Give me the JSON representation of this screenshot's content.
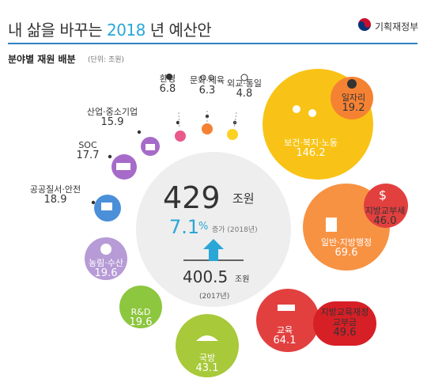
{
  "header": {
    "title_prefix": "내 삶을 바꾸는 ",
    "title_year": "2018",
    "title_suffix": " 년 예산안",
    "ministry": "기획재정부",
    "subtitle": "분야별 재원 배분",
    "unit": "(단위: 조원)"
  },
  "center": {
    "total": "429",
    "total_unit": "조원",
    "rate": "7.1",
    "rate_symbol": "%",
    "rate_text": "증가 (2018년)",
    "prev_total": "400.5",
    "prev_unit": "조원",
    "prev_year": "(2017년)"
  },
  "colors": {
    "accent": "#2aa7d6",
    "rule": "#2f7fc1",
    "yellow": "#f8c316",
    "pink": "#e8598c",
    "lavender": "#b79bd6",
    "purple": "#a66bc9",
    "blue": "#4a8fd8",
    "green": "#8dc63f",
    "orange": "#f79243",
    "orange_small": "#f58233",
    "red": "#e2403f",
    "red_small": "#d71f26",
    "yellow_dot": "#fbd224",
    "circle": "#eeeeee"
  },
  "chart_data": {
    "type": "bubble",
    "title": "분야별 재원 배분",
    "unit": "조원",
    "total": 429,
    "total_prev": 400.5,
    "growth_pct": 7.1,
    "categories": [
      {
        "name": "보건·복지·노동",
        "value": 146.2,
        "icon": "family-icon"
      },
      {
        "name": "일자리",
        "value": 19.2,
        "sub_of": "보건·복지·노동",
        "icon": "worker-icon"
      },
      {
        "name": "일반·지방행정",
        "value": 69.6,
        "icon": "building-icon"
      },
      {
        "name": "지방교부세",
        "value": 46.0,
        "sub_of": "일반·지방행정",
        "icon": "dollar-icon"
      },
      {
        "name": "교육",
        "value": 64.1,
        "icon": "book-icon"
      },
      {
        "name": "지방교육재정 교부금",
        "value": 49.6,
        "sub_of": "교육"
      },
      {
        "name": "국방",
        "value": 43.1,
        "icon": "helmet-icon"
      },
      {
        "name": "R&D",
        "value": 19.6
      },
      {
        "name": "농림·수산",
        "value": 19.6,
        "icon": "garlic-icon"
      },
      {
        "name": "공공질서·안전",
        "value": 18.9,
        "icon": "cctv-icon"
      },
      {
        "name": "SOC",
        "value": 17.7,
        "icon": "excavator-icon"
      },
      {
        "name": "산업·중소기업",
        "value": 15.9,
        "icon": "factory-icon"
      },
      {
        "name": "환경",
        "value": 6.8,
        "icon": "tree-icon"
      },
      {
        "name": "문화·체육",
        "value": 6.3,
        "icon": "glasses-icon"
      },
      {
        "name": "외교·통일",
        "value": 4.8,
        "icon": "globe-icon"
      }
    ]
  }
}
